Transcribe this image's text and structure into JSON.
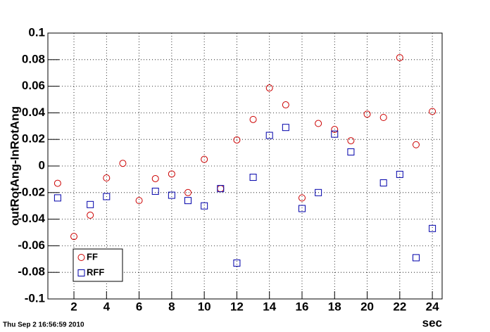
{
  "chart_data": {
    "type": "scatter",
    "ylabel": "outRotAng-InRotAng",
    "xlabel": "sec",
    "footer": "Thu Sep  2 16:56:59 2010",
    "x": [
      1,
      2,
      3,
      4,
      5,
      6,
      7,
      8,
      9,
      10,
      11,
      12,
      13,
      14,
      15,
      16,
      17,
      18,
      19,
      20,
      21,
      22,
      23,
      24
    ],
    "series": [
      {
        "name": "FF",
        "color": "#cc0000",
        "marker": "circle",
        "values": [
          -0.013,
          -0.053,
          -0.037,
          -0.009,
          0.002,
          -0.026,
          -0.0095,
          -0.006,
          -0.02,
          0.005,
          -0.017,
          0.0196,
          0.035,
          0.0587,
          0.046,
          -0.024,
          0.032,
          0.0275,
          0.019,
          0.039,
          0.0365,
          0.0815,
          0.016,
          0.041
        ]
      },
      {
        "name": "RFF",
        "color": "#0000aa",
        "marker": "square",
        "values": [
          -0.024,
          null,
          -0.029,
          -0.023,
          null,
          null,
          -0.019,
          -0.022,
          -0.026,
          -0.03,
          -0.017,
          -0.073,
          -0.0085,
          0.023,
          0.029,
          -0.032,
          -0.02,
          0.024,
          0.0106,
          null,
          -0.0127,
          -0.0063,
          -0.069,
          -0.047
        ]
      }
    ],
    "xlim": [
      0.4,
      24.6
    ],
    "ylim": [
      -0.1,
      0.1
    ],
    "xticks": [
      2,
      4,
      6,
      8,
      10,
      12,
      14,
      16,
      18,
      20,
      22,
      24
    ],
    "yticks": [
      -0.1,
      -0.08,
      -0.06,
      -0.04,
      -0.02,
      0,
      0.02,
      0.04,
      0.06,
      0.08,
      0.1
    ],
    "grid": true,
    "legend": "lower left"
  }
}
